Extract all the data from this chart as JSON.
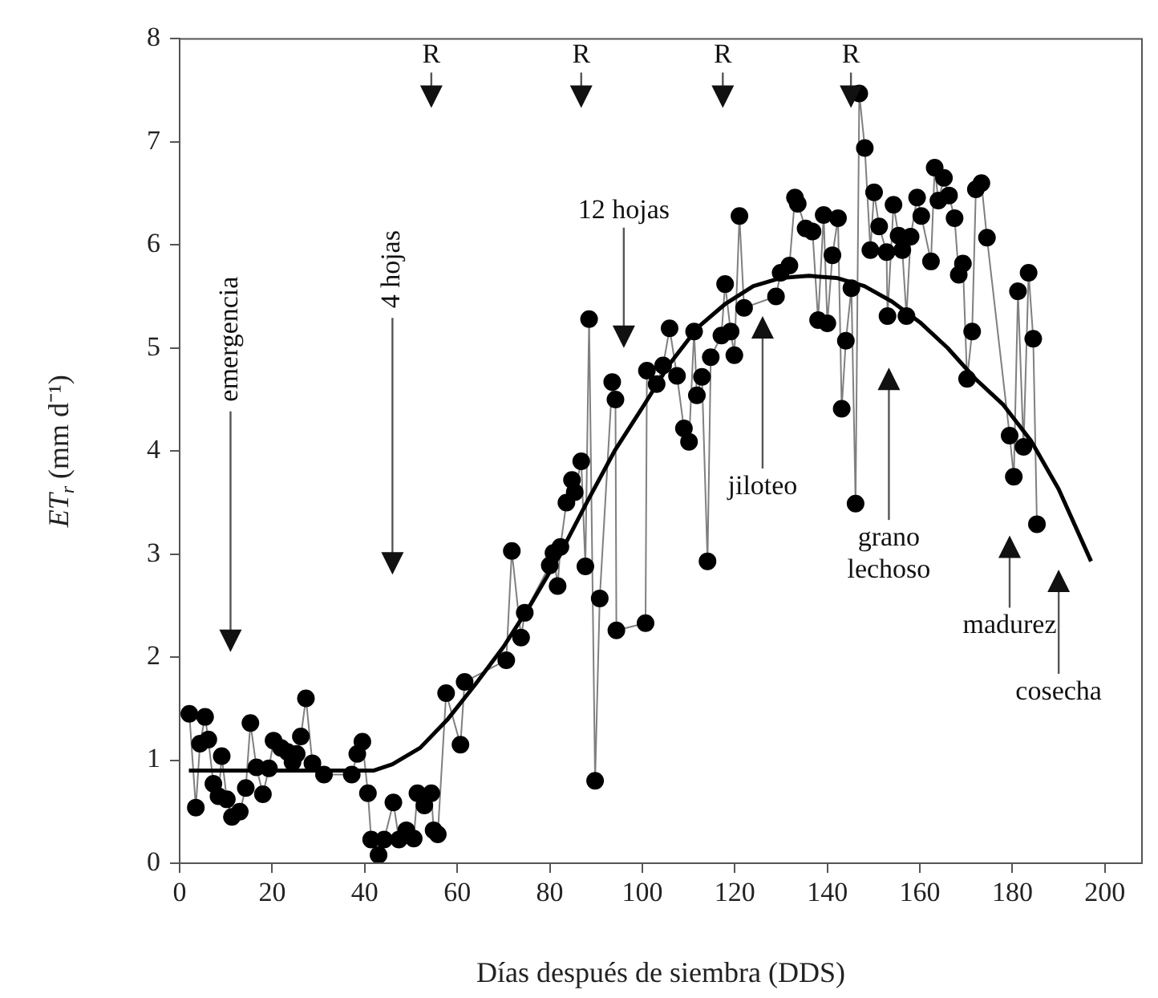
{
  "chart_data": {
    "type": "line",
    "xlabel": "Días después de siembra (DDS)",
    "ylabel": "ET$_{r}$ (mm d⁻¹)",
    "xlim": [
      0,
      208
    ],
    "xticks": [
      0,
      20,
      40,
      60,
      80,
      100,
      120,
      140,
      160,
      180,
      200
    ],
    "ylim": [
      0,
      8
    ],
    "yticks": [
      0,
      1,
      2,
      3,
      4,
      5,
      6,
      7,
      8
    ],
    "series": [
      {
        "color": "#000000",
        "marker": "circle",
        "x": [
          2.1,
          3.5,
          4.4,
          5.5,
          6.2,
          7.3,
          8.4,
          9.1,
          10.2,
          11.3,
          13,
          14.3,
          15.3,
          16.6,
          18,
          19.3,
          20.3,
          21.9,
          23.3,
          24.4,
          25.3,
          26.2,
          27.3,
          28.7,
          31.2,
          37.2,
          38.4,
          39.5,
          40.7,
          41.4,
          43,
          44.2,
          46.2,
          47.4,
          49,
          50.6,
          51.4,
          52.9,
          54.4,
          54.9,
          55.8,
          57.6,
          60.7,
          61.6,
          70.6,
          71.8,
          73.8,
          74.6,
          80,
          80.8,
          81.7,
          82.3,
          83.6,
          84.8,
          85.4,
          86.8,
          87.7,
          88.5,
          89.8,
          90.8,
          93.5,
          94.2,
          94.4,
          100.7,
          101,
          103.1,
          104.5,
          105.9,
          107.5,
          109,
          110.1,
          111.2,
          111.8,
          112.9,
          114.1,
          114.8,
          117.1,
          117.9,
          119.1,
          119.9,
          121,
          122,
          128.9,
          129.9,
          131.8,
          133,
          133.6,
          135.3,
          136.8,
          138,
          139.2,
          140,
          141.1,
          142.3,
          143.1,
          144,
          145.2,
          146.1,
          146.9,
          148.1,
          149.3,
          150.1,
          151.2,
          152.8,
          153,
          154.3,
          155.4,
          156.2,
          157.1,
          158,
          159.4,
          160.3,
          162.4,
          163.2,
          164,
          165.2,
          166.3,
          167.5,
          168.4,
          169.3,
          170.2,
          171.3,
          172.1,
          173.3,
          174.5,
          179.4,
          180.3,
          181.2,
          182.4,
          183.5,
          184.5,
          185.3
        ],
        "values": [
          1.45,
          0.54,
          1.16,
          1.42,
          1.2,
          0.77,
          0.65,
          1.04,
          0.62,
          0.45,
          0.5,
          0.73,
          1.36,
          0.93,
          0.67,
          0.92,
          1.19,
          1.12,
          1.08,
          0.98,
          1.06,
          1.23,
          1.6,
          0.97,
          0.86,
          0.86,
          1.06,
          1.18,
          0.68,
          0.23,
          0.08,
          0.23,
          0.59,
          0.23,
          0.32,
          0.24,
          0.68,
          0.56,
          0.68,
          0.32,
          0.28,
          1.65,
          1.15,
          1.76,
          1.97,
          3.03,
          2.19,
          2.43,
          2.89,
          3.01,
          2.69,
          3.07,
          3.5,
          3.72,
          3.6,
          3.9,
          2.88,
          5.28,
          0.8,
          2.57,
          4.67,
          4.5,
          2.26,
          2.33,
          4.78,
          4.65,
          4.83,
          5.19,
          4.73,
          4.22,
          4.09,
          5.16,
          4.54,
          4.72,
          2.93,
          4.91,
          5.12,
          5.62,
          5.16,
          4.93,
          6.28,
          5.39,
          5.5,
          5.73,
          5.8,
          6.46,
          6.4,
          6.16,
          6.13,
          5.27,
          6.29,
          5.24,
          5.9,
          6.26,
          4.41,
          5.07,
          5.58,
          3.49,
          7.47,
          6.94,
          5.95,
          6.51,
          6.18,
          5.93,
          5.31,
          6.39,
          6.09,
          5.95,
          5.31,
          6.08,
          6.46,
          6.28,
          5.84,
          6.75,
          6.43,
          6.65,
          6.48,
          6.26,
          5.71,
          5.82,
          4.7,
          5.16,
          6.54,
          6.6,
          6.07,
          4.15,
          3.75,
          5.55,
          4.04,
          5.73,
          5.09,
          3.29
        ]
      },
      {
        "color": "#000000",
        "marker": "none",
        "x": [
          2,
          42,
          46,
          52,
          58,
          64,
          70,
          76,
          82,
          88,
          94,
          100,
          106,
          112,
          118,
          124,
          130,
          136,
          142,
          148,
          154,
          160,
          166,
          172,
          178,
          184,
          190,
          197
        ],
        "values": [
          0.9,
          0.9,
          0.96,
          1.12,
          1.4,
          1.74,
          2.1,
          2.52,
          2.98,
          3.5,
          4.0,
          4.42,
          4.85,
          5.2,
          5.43,
          5.6,
          5.68,
          5.7,
          5.68,
          5.6,
          5.45,
          5.25,
          5.0,
          4.7,
          4.45,
          4.1,
          3.63,
          2.93
        ]
      }
    ],
    "annotations": [
      "R",
      "R",
      "R",
      "R",
      "emergencia",
      "4 hojas",
      "12 hojas",
      "jiloteo",
      "grano\nlechoso",
      "madurez",
      "cosecha"
    ]
  }
}
